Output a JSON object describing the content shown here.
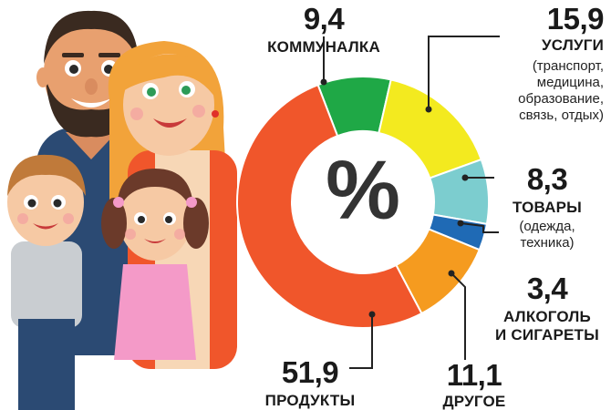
{
  "chart_data": {
    "type": "pie",
    "center_label": "%",
    "slices": [
      {
        "value": "9,4",
        "label": "КОММУНАЛКА",
        "detail": [],
        "color": "#1fa846",
        "amount": 9.4
      },
      {
        "value": "15,9",
        "label": "УСЛУГИ",
        "detail": [
          "(транспорт,",
          "медицина,",
          "образование,",
          "связь, отдых)"
        ],
        "color": "#f3ea1f",
        "amount": 15.9
      },
      {
        "value": "8,3",
        "label": "ТОВАРЫ",
        "detail": [
          "(одежда,",
          "техника)"
        ],
        "color": "#7ccdcf",
        "amount": 8.3
      },
      {
        "value": "3,4",
        "label": "АЛКОГОЛЬ",
        "label2": "И СИГАРЕТЫ",
        "detail": [],
        "color": "#1f6ab5",
        "amount": 3.4
      },
      {
        "value": "11,1",
        "label": "ДРУГОЕ",
        "detail": [],
        "color": "#f59b1f",
        "amount": 11.1
      },
      {
        "value": "51,9",
        "label": "ПРОДУКТЫ",
        "detail": [],
        "color": "#f0562b",
        "amount": 51.9
      }
    ]
  },
  "icons": [
    "family-illustration-icon"
  ]
}
